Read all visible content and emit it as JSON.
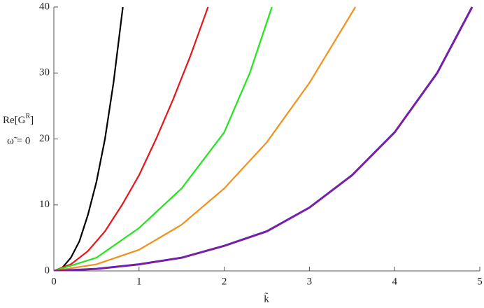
{
  "chart_data": {
    "type": "line",
    "xlabel": "k̃",
    "ylabel": {
      "base": "Re[G",
      "sup": "R",
      "close": "]"
    },
    "annotation": "ω̃ = 0",
    "xlim": [
      0,
      5
    ],
    "ylim": [
      0,
      40
    ],
    "xticks": [
      0,
      1,
      2,
      3,
      4,
      5
    ],
    "yticks": [
      0,
      10,
      20,
      30,
      40
    ],
    "grid": false,
    "series": [
      {
        "color": "#000000",
        "x": [
          0,
          0.1,
          0.2,
          0.3,
          0.4,
          0.5,
          0.6,
          0.7,
          0.81
        ],
        "values": [
          0,
          0.5,
          2,
          4.5,
          8.5,
          13.5,
          20,
          28.5,
          40
        ]
      },
      {
        "color": "#e8161b",
        "x": [
          0,
          0.2,
          0.4,
          0.6,
          0.8,
          1.0,
          1.2,
          1.4,
          1.6,
          1.81
        ],
        "values": [
          0,
          1,
          3,
          6,
          10,
          14.5,
          20,
          26,
          32.5,
          40
        ]
      },
      {
        "color": "#22e51c",
        "x": [
          0,
          0.5,
          1,
          1.5,
          2,
          2.3,
          2.56
        ],
        "values": [
          0,
          2,
          6.5,
          12.5,
          21,
          30,
          40
        ]
      },
      {
        "color": "#f4901a",
        "x": [
          0,
          0.5,
          1,
          1.5,
          2,
          2.5,
          3,
          3.54
        ],
        "values": [
          0,
          1,
          3.2,
          7,
          12.5,
          19.5,
          28.5,
          40
        ]
      },
      {
        "color": "#2a2ad8",
        "x": [
          0,
          0.5,
          1,
          1.5,
          2,
          2.5,
          3,
          3.5,
          4,
          4.5,
          4.91
        ],
        "values": [
          0,
          0.3,
          1,
          2,
          3.8,
          6,
          9.6,
          14.5,
          21,
          30,
          40
        ]
      },
      {
        "color": "#8a1a9a",
        "x": [
          0,
          0.5,
          1,
          1.5,
          2,
          2.5,
          3,
          3.5,
          4,
          4.5,
          4.91
        ],
        "values": [
          0,
          0.3,
          1,
          2,
          3.8,
          6,
          9.6,
          14.5,
          21,
          30,
          40
        ]
      }
    ]
  }
}
